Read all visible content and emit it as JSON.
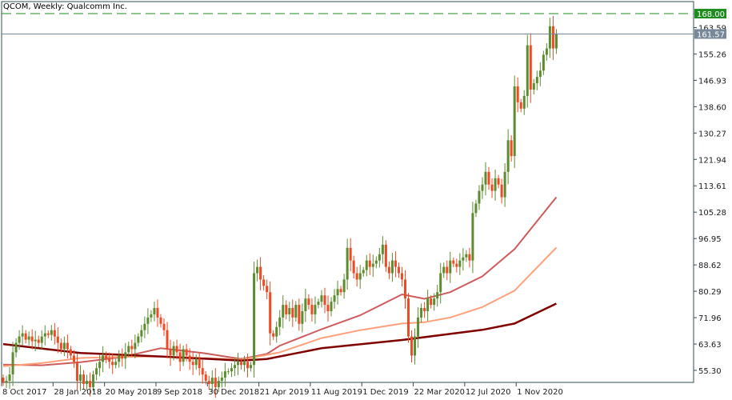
{
  "header": {
    "title": "QCOM, Weekly:  Qualcomm Inc."
  },
  "colors": {
    "bull": "#5b8c2f",
    "bear": "#f04a24",
    "ma_fast": "#cd5c5c",
    "ma_mid": "#ffa07a",
    "ma_slow": "#800000",
    "level_line": "#1e8c1e",
    "price_line": "#778899",
    "axis": "#2f4f4f"
  },
  "chart_data": {
    "type": "candlestick",
    "symbol": "QCOM",
    "timeframe": "Weekly",
    "ylim": [
      51.5,
      171.8
    ],
    "y_ticks": [
      "163.59",
      "155.26",
      "146.93",
      "138.60",
      "130.27",
      "121.94",
      "113.61",
      "105.28",
      "96.95",
      "88.62",
      "80.29",
      "71.96",
      "63.63",
      "55.30"
    ],
    "x_ticks": [
      "8 Oct 2017",
      "28 Jan 2018",
      "20 May 2018",
      "9 Sep 2018",
      "30 Dec 2018",
      "21 Apr 2019",
      "11 Aug 2019",
      "1 Dec 2019",
      "22 Mar 2020",
      "12 Jul 2020",
      "1 Nov 2020"
    ],
    "x_tick_every_weeks": 16,
    "close": [
      51.5,
      52,
      54,
      61,
      64,
      66,
      67,
      65,
      66,
      64.5,
      65,
      64,
      66,
      67,
      66.5,
      68,
      66,
      64,
      62,
      64,
      62,
      60,
      58,
      52,
      54,
      51,
      52,
      50,
      54,
      56,
      58,
      60,
      59,
      58,
      57,
      58,
      60,
      59,
      61,
      63,
      62,
      64,
      66,
      68,
      70,
      72,
      73,
      75,
      72,
      70,
      68,
      62,
      60,
      63,
      61,
      58,
      62,
      60,
      58,
      57,
      59,
      56,
      54,
      52,
      51,
      53,
      50,
      52,
      53,
      55,
      55,
      56,
      57,
      58,
      57,
      58,
      56,
      57,
      86,
      88,
      84,
      82,
      80,
      67,
      66,
      69,
      72,
      76,
      73,
      75,
      72,
      76,
      70,
      74,
      78,
      76,
      73,
      76,
      77,
      79,
      76,
      74,
      77,
      79,
      81,
      80,
      84,
      94,
      90,
      86,
      84,
      86,
      87,
      90,
      88,
      89,
      90,
      92,
      95,
      88,
      86,
      90,
      88,
      86,
      84,
      78,
      66,
      60,
      66,
      72,
      75,
      74,
      78,
      76,
      78,
      80,
      86,
      88,
      86,
      90,
      89,
      88,
      90,
      91,
      92,
      90,
      105,
      108,
      112,
      114,
      118,
      114,
      112,
      116,
      114,
      110,
      118,
      128,
      123,
      145,
      140,
      138,
      142,
      158,
      144,
      146,
      148,
      150,
      155,
      157,
      164,
      157,
      161.57
    ],
    "open_first": 53,
    "moving_averages": [
      {
        "key": "ma_fast",
        "points": [
          [
            "2017-10-08",
            57.1
          ],
          [
            "2017-12-31",
            56.9
          ],
          [
            "2018-03-25",
            57.9
          ],
          [
            "2018-06-24",
            59.5
          ],
          [
            "2018-09-16",
            62.3
          ],
          [
            "2018-12-16",
            60.8
          ],
          [
            "2019-03-10",
            58.9
          ],
          [
            "2019-05-05",
            60.5
          ],
          [
            "2019-06-02",
            63.1
          ],
          [
            "2019-09-01",
            68.3
          ],
          [
            "2019-11-24",
            72.7
          ],
          [
            "2020-02-23",
            79.3
          ],
          [
            "2020-04-12",
            77.9
          ],
          [
            "2020-06-07",
            80.0
          ],
          [
            "2020-08-16",
            85.0
          ],
          [
            "2020-10-25",
            93.6
          ],
          [
            "2021-01-24",
            110.0
          ]
        ]
      },
      {
        "key": "ma_mid",
        "points": [
          [
            "2017-10-08",
            56.6
          ],
          [
            "2017-12-31",
            57.6
          ],
          [
            "2018-03-25",
            59.2
          ],
          [
            "2018-06-24",
            59.6
          ],
          [
            "2018-09-16",
            59.7
          ],
          [
            "2018-12-16",
            59.2
          ],
          [
            "2019-03-10",
            58.7
          ],
          [
            "2019-05-05",
            60.2
          ],
          [
            "2019-06-02",
            61.0
          ],
          [
            "2019-09-01",
            65.5
          ],
          [
            "2019-11-24",
            68.0
          ],
          [
            "2020-02-23",
            70.1
          ],
          [
            "2020-04-12",
            70.5
          ],
          [
            "2020-06-07",
            72.0
          ],
          [
            "2020-08-16",
            75.3
          ],
          [
            "2020-10-25",
            80.5
          ],
          [
            "2021-01-24",
            94.1
          ]
        ]
      },
      {
        "key": "ma_slow",
        "points": [
          [
            "2017-10-08",
            63.6
          ],
          [
            "2018-03-25",
            60.8
          ],
          [
            "2018-09-16",
            59.7
          ],
          [
            "2019-03-10",
            58.4
          ],
          [
            "2019-05-05",
            58.9
          ],
          [
            "2019-09-01",
            62.3
          ],
          [
            "2020-02-23",
            64.9
          ],
          [
            "2020-08-16",
            68.1
          ],
          [
            "2020-10-25",
            70.1
          ],
          [
            "2021-01-24",
            76.4
          ]
        ]
      }
    ],
    "levels": [
      {
        "key": "level_line",
        "value": 168.0,
        "label": "168.00",
        "style": "dashed"
      },
      {
        "key": "price_line",
        "value": 161.57,
        "label": "161.57",
        "style": "solid"
      }
    ]
  }
}
